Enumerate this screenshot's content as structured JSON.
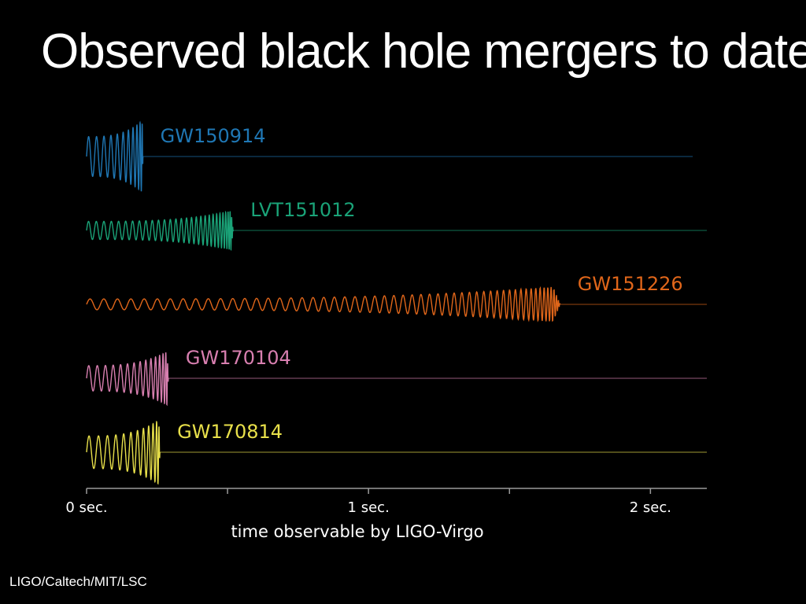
{
  "slide": {
    "title": "Observed black hole mergers to date",
    "credit": "LIGO/Caltech/MIT/LSC"
  },
  "chart_data": {
    "type": "line",
    "xlabel": "time observable by LIGO-Virgo",
    "xlim": [
      0,
      2.2
    ],
    "x_ticks": [
      {
        "value": 0,
        "label": "0 sec."
      },
      {
        "value": 0.5,
        "label": ""
      },
      {
        "value": 1,
        "label": "1 sec."
      },
      {
        "value": 1.5,
        "label": ""
      },
      {
        "value": 2,
        "label": "2 sec."
      }
    ],
    "series": [
      {
        "name": "GW150914",
        "color": "#1f77b4",
        "duration": 0.2,
        "trace_end": 2.15,
        "cycles": 11,
        "amp_start": 0.55,
        "amp_peak": 1.0
      },
      {
        "name": "LVT151012",
        "color": "#1aa378",
        "duration": 0.52,
        "trace_end": 2.2,
        "cycles": 30,
        "amp_start": 0.25,
        "amp_peak": 0.55
      },
      {
        "name": "GW151226",
        "color": "#e0661a",
        "duration": 1.68,
        "trace_end": 2.2,
        "cycles": 55,
        "amp_start": 0.15,
        "amp_peak": 0.5
      },
      {
        "name": "GW170104",
        "color": "#d87fb0",
        "duration": 0.29,
        "trace_end": 2.2,
        "cycles": 15,
        "amp_start": 0.35,
        "amp_peak": 0.75
      },
      {
        "name": "GW170814",
        "color": "#e8e04a",
        "duration": 0.26,
        "trace_end": 2.2,
        "cycles": 12,
        "amp_start": 0.45,
        "amp_peak": 0.9
      }
    ]
  }
}
